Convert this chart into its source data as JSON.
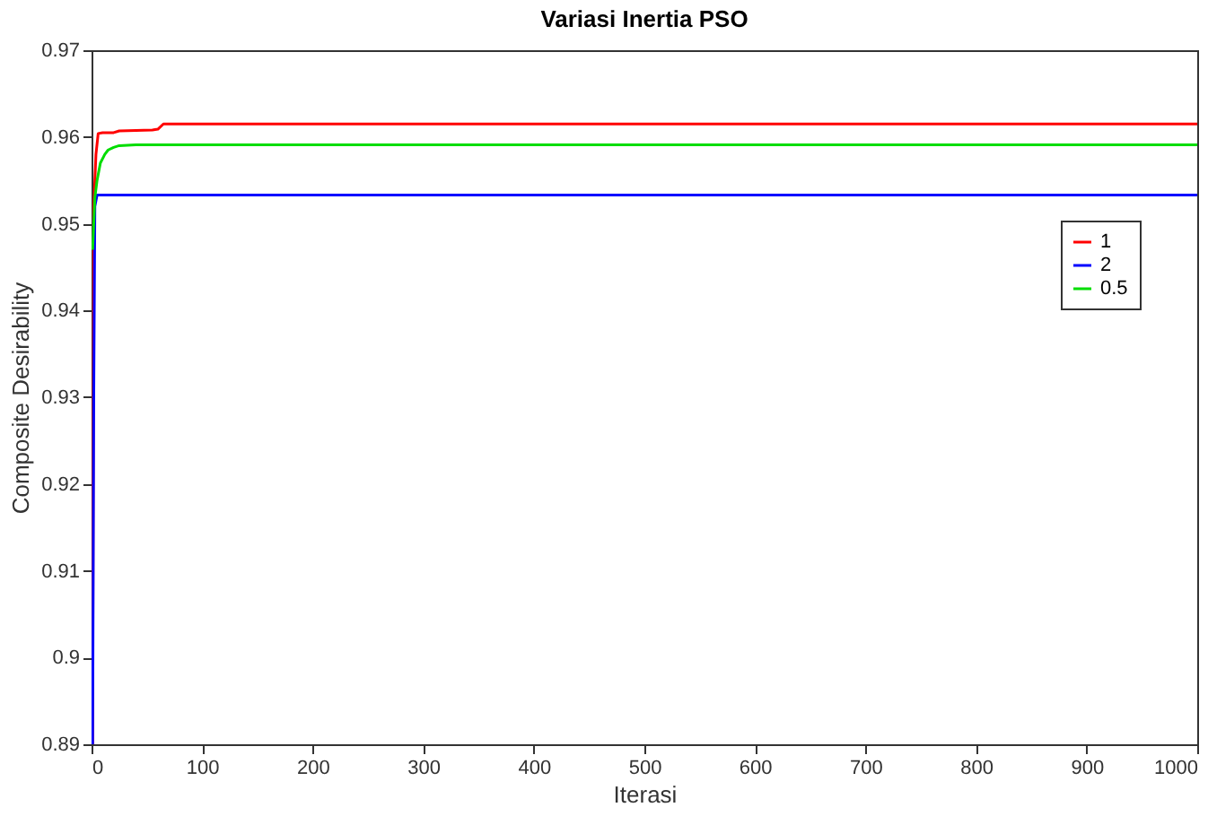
{
  "chart_data": {
    "type": "line",
    "title": "Variasi Inertia PSO",
    "xlabel": "Iterasi",
    "ylabel": "Composite Desirability",
    "xlim": [
      0,
      1000
    ],
    "xticks": [
      0,
      100,
      200,
      300,
      400,
      500,
      600,
      700,
      800,
      900,
      1000
    ],
    "ylim": [
      0.89,
      0.97
    ],
    "yticks": [
      0.89,
      0.9,
      0.91,
      0.92,
      0.93,
      0.94,
      0.95,
      0.96,
      0.97
    ],
    "grid": false,
    "legend": "top right",
    "marker": "none",
    "line_style": "solid",
    "series": [
      {
        "name": "1",
        "color": "#ff0000",
        "x": [
          1,
          2,
          3,
          4,
          6,
          10,
          20,
          25,
          55,
          60,
          65,
          1000
        ],
        "values": [
          0.89,
          0.952,
          0.955,
          0.958,
          0.9604,
          0.9605,
          0.9605,
          0.9607,
          0.9608,
          0.9609,
          0.9615,
          0.9615
        ]
      },
      {
        "name": "2",
        "color": "#0000ff",
        "x": [
          1,
          2,
          3,
          5,
          10,
          1000
        ],
        "values": [
          0.89,
          0.93,
          0.952,
          0.9533,
          0.9533,
          0.9533
        ]
      },
      {
        "name": "0.5",
        "color": "#00dd00",
        "x": [
          1,
          2,
          3,
          5,
          8,
          12,
          15,
          20,
          25,
          40,
          1000
        ],
        "values": [
          0.947,
          0.95,
          0.953,
          0.955,
          0.957,
          0.958,
          0.9585,
          0.9588,
          0.959,
          0.9591,
          0.9591
        ]
      }
    ]
  }
}
